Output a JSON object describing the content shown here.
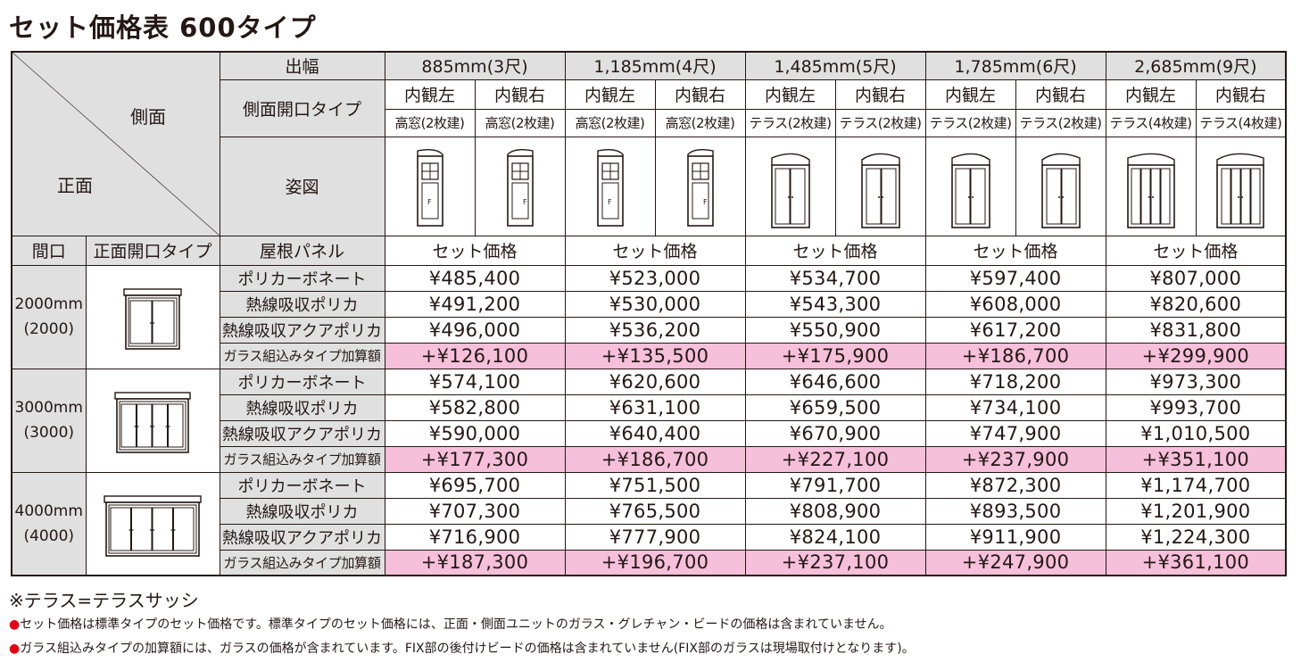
{
  "title": "セット価格表 600タイプ",
  "header": {
    "corner_side": "側面",
    "corner_front": "正面",
    "row_width": "出幅",
    "row_side_type": "側面開口タイプ",
    "row_figure": "姿図",
    "col_frontage": "間口",
    "col_front_type": "正面開口タイプ",
    "col_roof_panel": "屋根パネル",
    "widths": [
      "885mm(3尺)",
      "1,185mm(4尺)",
      "1,485mm(5尺)",
      "1,785mm(6尺)",
      "2,685mm(9尺)"
    ],
    "view_left": "内観左",
    "view_right": "内観右",
    "side_types": [
      "高窓(2枚建)",
      "高窓(2枚建)",
      "高窓(2枚建)",
      "高窓(2枚建)",
      "テラス(2枚建)",
      "テラス(2枚建)",
      "テラス(2枚建)",
      "テラス(2枚建)",
      "テラス(4枚建)",
      "テラス(4枚建)"
    ],
    "set_price": "セット価格",
    "fix_label": "F"
  },
  "groups": [
    {
      "frontage": "2000mm",
      "frontage_sub": "(2000)",
      "rows": [
        {
          "panel": "ポリカーボネート",
          "prices": [
            "¥485,400",
            "¥523,000",
            "¥534,700",
            "¥597,400",
            "¥807,000"
          ]
        },
        {
          "panel": "熱線吸収ポリカ",
          "prices": [
            "¥491,200",
            "¥530,000",
            "¥543,300",
            "¥608,000",
            "¥820,600"
          ]
        },
        {
          "panel": "熱線吸収アクアポリカ",
          "prices": [
            "¥496,000",
            "¥536,200",
            "¥550,900",
            "¥617,200",
            "¥831,800"
          ]
        },
        {
          "panel": "ガラス組込みタイプ加算額",
          "prices": [
            "+¥126,100",
            "+¥135,500",
            "+¥175,900",
            "+¥186,700",
            "+¥299,900"
          ]
        }
      ]
    },
    {
      "frontage": "3000mm",
      "frontage_sub": "(3000)",
      "rows": [
        {
          "panel": "ポリカーボネート",
          "prices": [
            "¥574,100",
            "¥620,600",
            "¥646,600",
            "¥718,200",
            "¥973,300"
          ]
        },
        {
          "panel": "熱線吸収ポリカ",
          "prices": [
            "¥582,800",
            "¥631,100",
            "¥659,500",
            "¥734,100",
            "¥993,700"
          ]
        },
        {
          "panel": "熱線吸収アクアポリカ",
          "prices": [
            "¥590,000",
            "¥640,400",
            "¥670,900",
            "¥747,900",
            "¥1,010,500"
          ]
        },
        {
          "panel": "ガラス組込みタイプ加算額",
          "prices": [
            "+¥177,300",
            "+¥186,700",
            "+¥227,100",
            "+¥237,900",
            "+¥351,100"
          ]
        }
      ]
    },
    {
      "frontage": "4000mm",
      "frontage_sub": "(4000)",
      "rows": [
        {
          "panel": "ポリカーボネート",
          "prices": [
            "¥695,700",
            "¥751,500",
            "¥791,700",
            "¥872,300",
            "¥1,174,700"
          ]
        },
        {
          "panel": "熱線吸収ポリカ",
          "prices": [
            "¥707,300",
            "¥765,500",
            "¥808,900",
            "¥893,500",
            "¥1,201,900"
          ]
        },
        {
          "panel": "熱線吸収アクアポリカ",
          "prices": [
            "¥716,900",
            "¥777,900",
            "¥824,100",
            "¥911,900",
            "¥1,224,300"
          ]
        },
        {
          "panel": "ガラス組込みタイプ加算額",
          "prices": [
            "+¥187,300",
            "+¥196,700",
            "+¥237,100",
            "+¥247,900",
            "+¥361,100"
          ]
        }
      ]
    }
  ],
  "notes": {
    "terrace": "※テラス=テラスサッシ",
    "bullet": "●",
    "note1": "セット価格は標準タイプのセット価格です。標準タイプのセット価格には、正面・側面ユニットのガラス・グレチャン・ビードの価格は含まれていません。",
    "note2": "ガラス組込みタイプの加算額には、ガラスの価格が含まれています。FIX部の後付けビードの価格は含まれていません(FIX部のガラスは現場取付けとなります)。"
  },
  "colors": {
    "text": "#231815",
    "header_bg": "#e0e0e0",
    "addon_bg": "#f6bfda",
    "bullet": "#e60012"
  }
}
